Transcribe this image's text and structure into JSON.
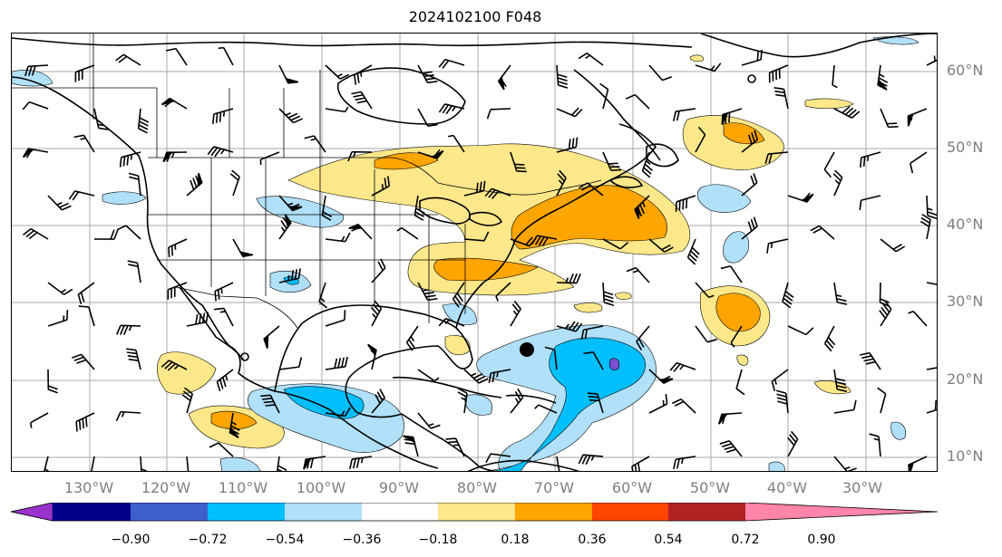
{
  "title": "2024102100 F048",
  "lat_labels": [
    "60°N",
    "50°N",
    "40°N",
    "30°N",
    "20°N",
    "10°N"
  ],
  "lon_labels": [
    "130°W",
    "120°W",
    "110°W",
    "100°W",
    "90°W",
    "80°W",
    "70°W",
    "60°W",
    "50°W",
    "40°W",
    "30°W"
  ],
  "colorbar": {
    "ticks": [
      "−0.90",
      "−0.72",
      "−0.54",
      "−0.36",
      "−0.18",
      "0.18",
      "0.36",
      "0.54",
      "0.72",
      "0.90"
    ],
    "colors": [
      "#9932cc",
      "#00008b",
      "#3f5fcf",
      "#00bfff",
      "#b0e0fa",
      "#ffffff",
      "#ffe88a",
      "#ffa500",
      "#ff4500",
      "#b22222",
      "#ff85aa"
    ]
  },
  "colors": {
    "pos_light": "#ffe88a",
    "pos_mid": "#ffa500",
    "neg_light": "#b0e0fa",
    "neg_mid": "#00bfff",
    "neg_deep": "#7b4fcf",
    "gridline": "#a9a9a9",
    "coast": "#000000"
  }
}
